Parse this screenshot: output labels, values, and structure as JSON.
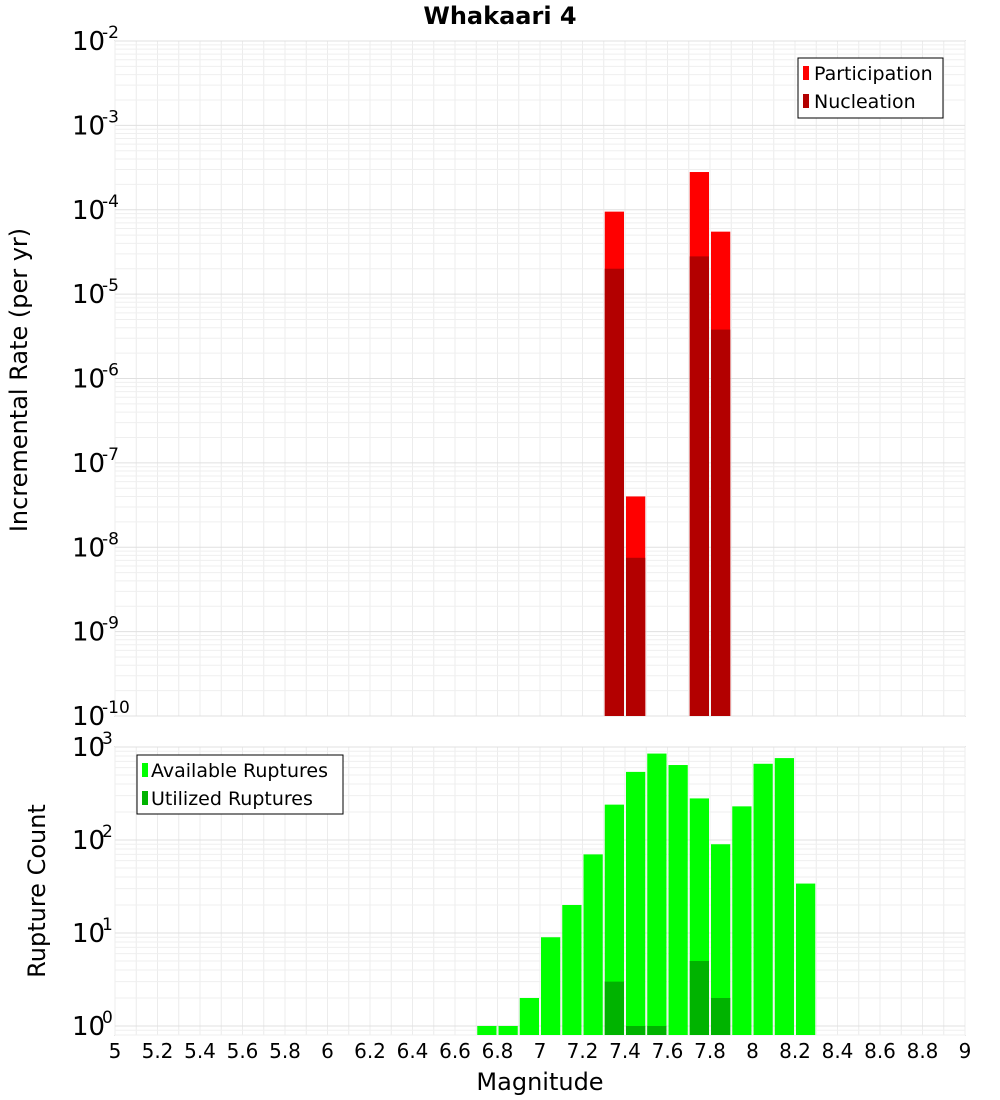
{
  "chart_data": [
    {
      "type": "bar",
      "title": "Whakaari 4",
      "xlabel": "",
      "ylabel": "Incremental Rate (per yr)",
      "y_scale": "log",
      "ylim": [
        1e-10,
        0.01
      ],
      "y_ticks": [
        {
          "base": "10",
          "exp": "-10"
        },
        {
          "base": "10",
          "exp": "-9"
        },
        {
          "base": "10",
          "exp": "-8"
        },
        {
          "base": "10",
          "exp": "-7"
        },
        {
          "base": "10",
          "exp": "-6"
        },
        {
          "base": "10",
          "exp": "-5"
        },
        {
          "base": "10",
          "exp": "-4"
        },
        {
          "base": "10",
          "exp": "-3"
        },
        {
          "base": "10",
          "exp": "-2"
        }
      ],
      "xlim": [
        5,
        9
      ],
      "grid": true,
      "legend_position": "top-right",
      "bar_width": 0.1,
      "series": [
        {
          "name": "Participation",
          "color": "#ff0000",
          "points": [
            {
              "x": 7.35,
              "y": 9.5e-05
            },
            {
              "x": 7.45,
              "y": 4e-08
            },
            {
              "x": 7.75,
              "y": 0.00028
            },
            {
              "x": 7.85,
              "y": 5.5e-05
            }
          ]
        },
        {
          "name": "Nucleation",
          "color": "#b30000",
          "points": [
            {
              "x": 7.35,
              "y": 2e-05
            },
            {
              "x": 7.45,
              "y": 7.5e-09
            },
            {
              "x": 7.75,
              "y": 2.8e-05
            },
            {
              "x": 7.85,
              "y": 3.8e-06
            }
          ]
        }
      ]
    },
    {
      "type": "bar",
      "title": "",
      "xlabel": "Magnitude",
      "ylabel": "Rupture Count",
      "y_scale": "log",
      "ylim": [
        0.8,
        1000
      ],
      "y_ticks": [
        {
          "base": "10",
          "exp": "0"
        },
        {
          "base": "10",
          "exp": "1"
        },
        {
          "base": "10",
          "exp": "2"
        },
        {
          "base": "10",
          "exp": "3"
        }
      ],
      "xlim": [
        5,
        9
      ],
      "x_ticks": [
        "5",
        "5.2",
        "5.4",
        "5.6",
        "5.8",
        "6",
        "6.2",
        "6.4",
        "6.6",
        "6.8",
        "7",
        "7.2",
        "7.4",
        "7.6",
        "7.8",
        "8",
        "8.2",
        "8.4",
        "8.6",
        "8.8",
        "9"
      ],
      "grid": true,
      "legend_position": "top-left",
      "bar_width": 0.1,
      "series": [
        {
          "name": "Available Ruptures",
          "color": "#00ff00",
          "points": [
            {
              "x": 6.75,
              "y": 1
            },
            {
              "x": 6.85,
              "y": 1
            },
            {
              "x": 6.95,
              "y": 2
            },
            {
              "x": 7.05,
              "y": 9
            },
            {
              "x": 7.15,
              "y": 20
            },
            {
              "x": 7.25,
              "y": 70
            },
            {
              "x": 7.35,
              "y": 240
            },
            {
              "x": 7.45,
              "y": 540
            },
            {
              "x": 7.55,
              "y": 850
            },
            {
              "x": 7.65,
              "y": 640
            },
            {
              "x": 7.75,
              "y": 280
            },
            {
              "x": 7.85,
              "y": 90
            },
            {
              "x": 7.95,
              "y": 230
            },
            {
              "x": 8.05,
              "y": 660
            },
            {
              "x": 8.15,
              "y": 760
            },
            {
              "x": 8.25,
              "y": 34
            }
          ]
        },
        {
          "name": "Utilized Ruptures",
          "color": "#00b300",
          "points": [
            {
              "x": 7.35,
              "y": 3
            },
            {
              "x": 7.45,
              "y": 1
            },
            {
              "x": 7.55,
              "y": 1
            },
            {
              "x": 7.75,
              "y": 5
            },
            {
              "x": 7.85,
              "y": 2
            }
          ]
        }
      ]
    }
  ]
}
